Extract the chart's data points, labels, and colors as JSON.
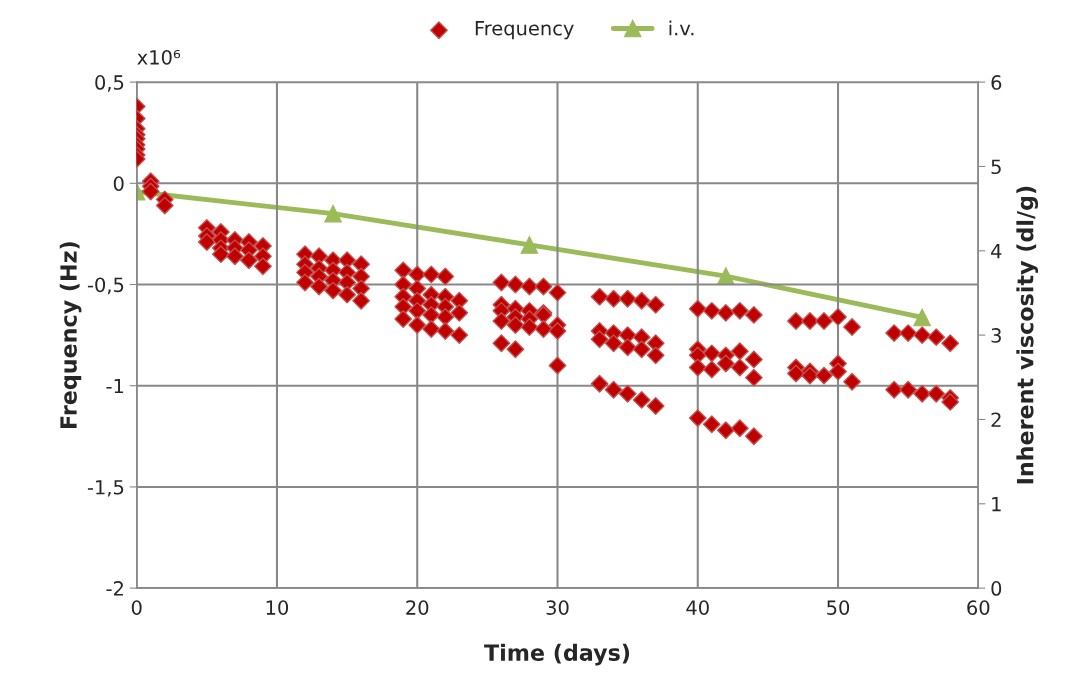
{
  "chart_data": {
    "type": "scatter",
    "xlabel": "Time (days)",
    "ylabel": "Frequency (Hz)",
    "y2label": "Inherent viscosity (dl/g)",
    "annotations": [
      "x10⁶"
    ],
    "xlim": [
      0,
      60
    ],
    "xticks": [
      0,
      10,
      20,
      30,
      40,
      50,
      60
    ],
    "ylim": [
      -2,
      0.5
    ],
    "yticks": [
      {
        "value": -2,
        "label": "-2"
      },
      {
        "value": -1.5,
        "label": "-1,5"
      },
      {
        "value": -1,
        "label": "-1"
      },
      {
        "value": -0.5,
        "label": "-0,5"
      },
      {
        "value": 0,
        "label": "0"
      },
      {
        "value": 0.5,
        "label": "0,5"
      }
    ],
    "y2lim": [
      0,
      6
    ],
    "y2ticks": [
      0,
      1,
      2,
      3,
      4,
      5,
      6
    ],
    "grid": true,
    "legend": "top",
    "series": [
      {
        "name": "Frequency",
        "marker": "diamond",
        "color": "#c00000",
        "x": [
          0,
          0,
          0,
          0,
          0,
          0,
          0,
          0,
          0,
          1,
          1,
          1,
          2,
          2,
          5,
          5,
          5,
          6,
          6,
          6,
          6,
          7,
          7,
          7,
          8,
          8,
          8,
          9,
          9,
          9,
          12,
          12,
          12,
          12,
          13,
          13,
          13,
          13,
          14,
          14,
          14,
          14,
          15,
          15,
          15,
          15,
          16,
          16,
          16,
          16,
          19,
          19,
          19,
          19,
          19,
          20,
          20,
          20,
          20,
          20,
          21,
          21,
          21,
          21,
          21,
          22,
          22,
          22,
          22,
          22,
          23,
          23,
          23,
          26,
          26,
          26,
          26,
          26,
          27,
          27,
          27,
          27,
          27,
          28,
          28,
          28,
          28,
          29,
          29,
          29,
          29,
          30,
          30,
          30,
          30,
          33,
          33,
          33,
          33,
          34,
          34,
          34,
          34,
          35,
          35,
          35,
          35,
          36,
          36,
          36,
          36,
          37,
          37,
          37,
          37,
          40,
          40,
          40,
          40,
          40,
          41,
          41,
          41,
          41,
          42,
          42,
          42,
          42,
          43,
          43,
          43,
          43,
          44,
          44,
          44,
          44,
          47,
          47,
          47,
          48,
          48,
          48,
          49,
          49,
          50,
          50,
          50,
          51,
          51,
          54,
          54,
          55,
          55,
          56,
          56,
          57,
          57,
          58,
          58,
          58
        ],
        "values": [
          0.38,
          0.32,
          0.27,
          0.24,
          0.22,
          0.19,
          0.17,
          0.14,
          0.12,
          0.01,
          -0.015,
          -0.04,
          -0.08,
          -0.11,
          -0.22,
          -0.26,
          -0.29,
          -0.24,
          -0.28,
          -0.32,
          -0.35,
          -0.28,
          -0.32,
          -0.36,
          -0.29,
          -0.33,
          -0.38,
          -0.31,
          -0.36,
          -0.41,
          -0.35,
          -0.4,
          -0.44,
          -0.49,
          -0.36,
          -0.42,
          -0.46,
          -0.51,
          -0.38,
          -0.43,
          -0.48,
          -0.53,
          -0.38,
          -0.44,
          -0.49,
          -0.55,
          -0.4,
          -0.46,
          -0.52,
          -0.58,
          -0.43,
          -0.5,
          -0.56,
          -0.61,
          -0.67,
          -0.45,
          -0.52,
          -0.58,
          -0.63,
          -0.7,
          -0.45,
          -0.55,
          -0.6,
          -0.65,
          -0.72,
          -0.46,
          -0.56,
          -0.61,
          -0.66,
          -0.73,
          -0.58,
          -0.64,
          -0.75,
          -0.49,
          -0.6,
          -0.63,
          -0.68,
          -0.79,
          -0.5,
          -0.62,
          -0.66,
          -0.7,
          -0.82,
          -0.51,
          -0.63,
          -0.67,
          -0.71,
          -0.51,
          -0.64,
          -0.65,
          -0.72,
          -0.54,
          -0.7,
          -0.73,
          -0.9,
          -0.56,
          -0.73,
          -0.77,
          -0.99,
          -0.57,
          -0.74,
          -0.79,
          -1.02,
          -0.57,
          -0.75,
          -0.81,
          -1.04,
          -0.58,
          -0.76,
          -0.82,
          -1.07,
          -0.6,
          -0.79,
          -0.85,
          -1.1,
          -0.62,
          -0.82,
          -0.85,
          -0.91,
          -1.16,
          -0.63,
          -0.84,
          -0.92,
          -1.19,
          -0.64,
          -0.85,
          -0.89,
          -1.22,
          -0.63,
          -0.83,
          -0.91,
          -1.21,
          -0.65,
          -0.87,
          -0.96,
          -1.25,
          -0.68,
          -0.91,
          -0.94,
          -0.68,
          -0.93,
          -0.95,
          -0.68,
          -0.95,
          -0.66,
          -0.89,
          -0.93,
          -0.71,
          -0.98,
          -0.74,
          -1.02,
          -0.74,
          -1.02,
          -0.75,
          -1.04,
          -0.76,
          -1.04,
          -0.79,
          -1.06,
          -1.08
        ]
      },
      {
        "name": "i.v.",
        "type": "line",
        "axis": "y2",
        "marker": "triangle",
        "color": "#9bbb59",
        "x": [
          0,
          14,
          28,
          42,
          56
        ],
        "values": [
          4.7,
          4.44,
          4.07,
          3.7,
          3.21
        ]
      }
    ]
  }
}
